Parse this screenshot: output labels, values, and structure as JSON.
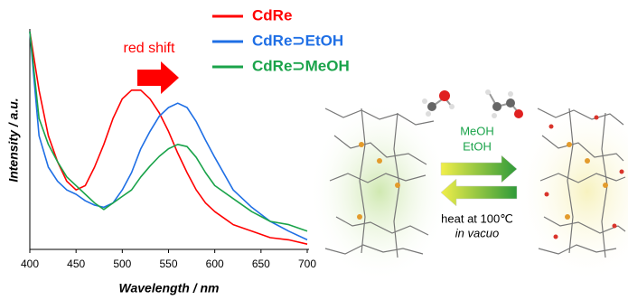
{
  "chart_data": {
    "type": "line",
    "x_label": "Wavelength / nm",
    "y_label": "Intensity / a.u.",
    "annotation": "red shift",
    "xlim": [
      400,
      700
    ],
    "xticks": [
      400,
      450,
      500,
      550,
      600,
      650,
      700
    ],
    "ylim": [
      0,
      1
    ],
    "legend": "top-right",
    "x": [
      400,
      410,
      420,
      430,
      440,
      450,
      460,
      470,
      480,
      490,
      500,
      510,
      520,
      530,
      540,
      550,
      560,
      570,
      580,
      590,
      600,
      620,
      640,
      660,
      680,
      700
    ],
    "series": [
      {
        "name": "CdRe",
        "color": "#ff0000",
        "values": [
          1.0,
          0.73,
          0.52,
          0.4,
          0.31,
          0.27,
          0.29,
          0.375,
          0.48,
          0.6,
          0.69,
          0.73,
          0.73,
          0.69,
          0.625,
          0.54,
          0.44,
          0.35,
          0.27,
          0.21,
          0.17,
          0.11,
          0.08,
          0.05,
          0.04,
          0.02
        ]
      },
      {
        "name": "CdRe⊃EtOH",
        "color": "#1f6fe5",
        "values": [
          1.0,
          0.52,
          0.375,
          0.31,
          0.27,
          0.25,
          0.22,
          0.2,
          0.19,
          0.21,
          0.27,
          0.35,
          0.46,
          0.54,
          0.61,
          0.65,
          0.67,
          0.65,
          0.585,
          0.5,
          0.42,
          0.27,
          0.19,
          0.125,
          0.08,
          0.04
        ]
      },
      {
        "name": "CdRe⊃MeOH",
        "color": "#1aa34a",
        "values": [
          1.0,
          0.6,
          0.48,
          0.4,
          0.33,
          0.29,
          0.25,
          0.21,
          0.18,
          0.21,
          0.24,
          0.27,
          0.33,
          0.38,
          0.425,
          0.46,
          0.48,
          0.47,
          0.42,
          0.35,
          0.29,
          0.23,
          0.17,
          0.125,
          0.11,
          0.08
        ]
      }
    ]
  },
  "diagram": {
    "forward_labels": [
      "MeOH",
      "EtOH"
    ],
    "reverse_labels": [
      "heat at 100℃",
      "in vacuo"
    ]
  }
}
